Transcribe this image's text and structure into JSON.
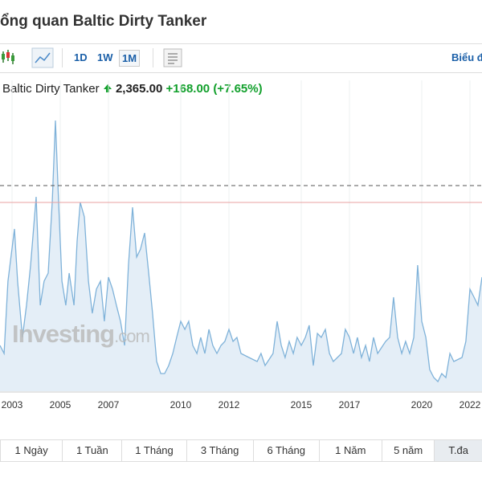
{
  "header": {
    "title": "ổng quan Baltic Dirty Tanker"
  },
  "toolbar": {
    "intervals": [
      "1D",
      "1W",
      "1M"
    ],
    "selected": "1M",
    "right_link": "Biểu đ"
  },
  "quote": {
    "name": "Baltic Dirty Tanker",
    "last": "2,365.00",
    "change": "+168.00",
    "change_pct": "(+7.65%)"
  },
  "watermark": {
    "brand": "Investing",
    "suffix": ".com"
  },
  "chart_data": {
    "type": "area",
    "color": "#7fb2d9",
    "x": [
      2002.5,
      2002.67,
      2002.83,
      2003.1,
      2003.23,
      2003.43,
      2003.6,
      2003.77,
      2004.0,
      2004.17,
      2004.33,
      2004.5,
      2004.67,
      2004.8,
      2004.93,
      2005.07,
      2005.23,
      2005.37,
      2005.57,
      2005.7,
      2005.83,
      2006.0,
      2006.17,
      2006.33,
      2006.5,
      2006.67,
      2006.83,
      2007.0,
      2007.17,
      2007.33,
      2007.5,
      2007.67,
      2007.83,
      2008.0,
      2008.17,
      2008.33,
      2008.5,
      2008.67,
      2008.83,
      2009.0,
      2009.17,
      2009.33,
      2009.5,
      2009.67,
      2009.83,
      2010.0,
      2010.17,
      2010.33,
      2010.5,
      2010.67,
      2010.83,
      2011.0,
      2011.17,
      2011.33,
      2011.5,
      2011.67,
      2011.83,
      2012.0,
      2012.17,
      2012.33,
      2012.5,
      2012.83,
      2013.17,
      2013.33,
      2013.5,
      2013.83,
      2014.0,
      2014.17,
      2014.33,
      2014.5,
      2014.67,
      2014.83,
      2015.0,
      2015.17,
      2015.33,
      2015.5,
      2015.67,
      2015.83,
      2016.0,
      2016.17,
      2016.33,
      2016.67,
      2016.83,
      2017.0,
      2017.17,
      2017.33,
      2017.5,
      2017.67,
      2017.83,
      2018.0,
      2018.17,
      2018.5,
      2018.67,
      2018.83,
      2019.0,
      2019.17,
      2019.33,
      2019.5,
      2019.67,
      2019.83,
      2020.0,
      2020.17,
      2020.33,
      2020.5,
      2020.67,
      2020.83,
      2021.0,
      2021.17,
      2021.33,
      2021.67,
      2021.83,
      2022.0,
      2022.17,
      2022.33,
      2022.5
    ],
    "values": [
      773,
      693,
      1413,
      1933,
      1413,
      853,
      1173,
      1573,
      2253,
      1173,
      1413,
      1493,
      2213,
      3013,
      2213,
      1413,
      1173,
      1493,
      1173,
      1813,
      2197,
      2053,
      1413,
      1093,
      1333,
      1413,
      1013,
      1453,
      1333,
      1173,
      1013,
      773,
      1573,
      2149,
      1653,
      1733,
      1893,
      1493,
      1093,
      613,
      493,
      493,
      573,
      693,
      853,
      1013,
      933,
      1013,
      773,
      693,
      853,
      693,
      933,
      773,
      693,
      773,
      813,
      933,
      813,
      853,
      693,
      653,
      613,
      693,
      573,
      693,
      1013,
      773,
      653,
      813,
      693,
      853,
      773,
      853,
      973,
      573,
      893,
      853,
      933,
      693,
      613,
      693,
      933,
      853,
      693,
      853,
      653,
      773,
      613,
      853,
      693,
      813,
      853,
      1253,
      853,
      693,
      813,
      693,
      853,
      1573,
      1013,
      853,
      533,
      453,
      413,
      493,
      453,
      693,
      613,
      653,
      813,
      1333,
      1253,
      1173,
      1453
    ],
    "xlim": [
      2002.5,
      2022.5
    ],
    "ylim": [
      317,
      3093
    ],
    "xticks": [
      2003,
      2005,
      2007,
      2010,
      2012,
      2015,
      2017,
      2020,
      2022
    ],
    "reference_lines": [
      2365,
      2197
    ],
    "grid": true
  },
  "ranges": {
    "buttons": [
      "1 Ngày",
      "1 Tuần",
      "1 Tháng",
      "3 Tháng",
      "6 Tháng",
      "1 Năm",
      "5 năm",
      "T.đa"
    ],
    "selected": 7
  }
}
